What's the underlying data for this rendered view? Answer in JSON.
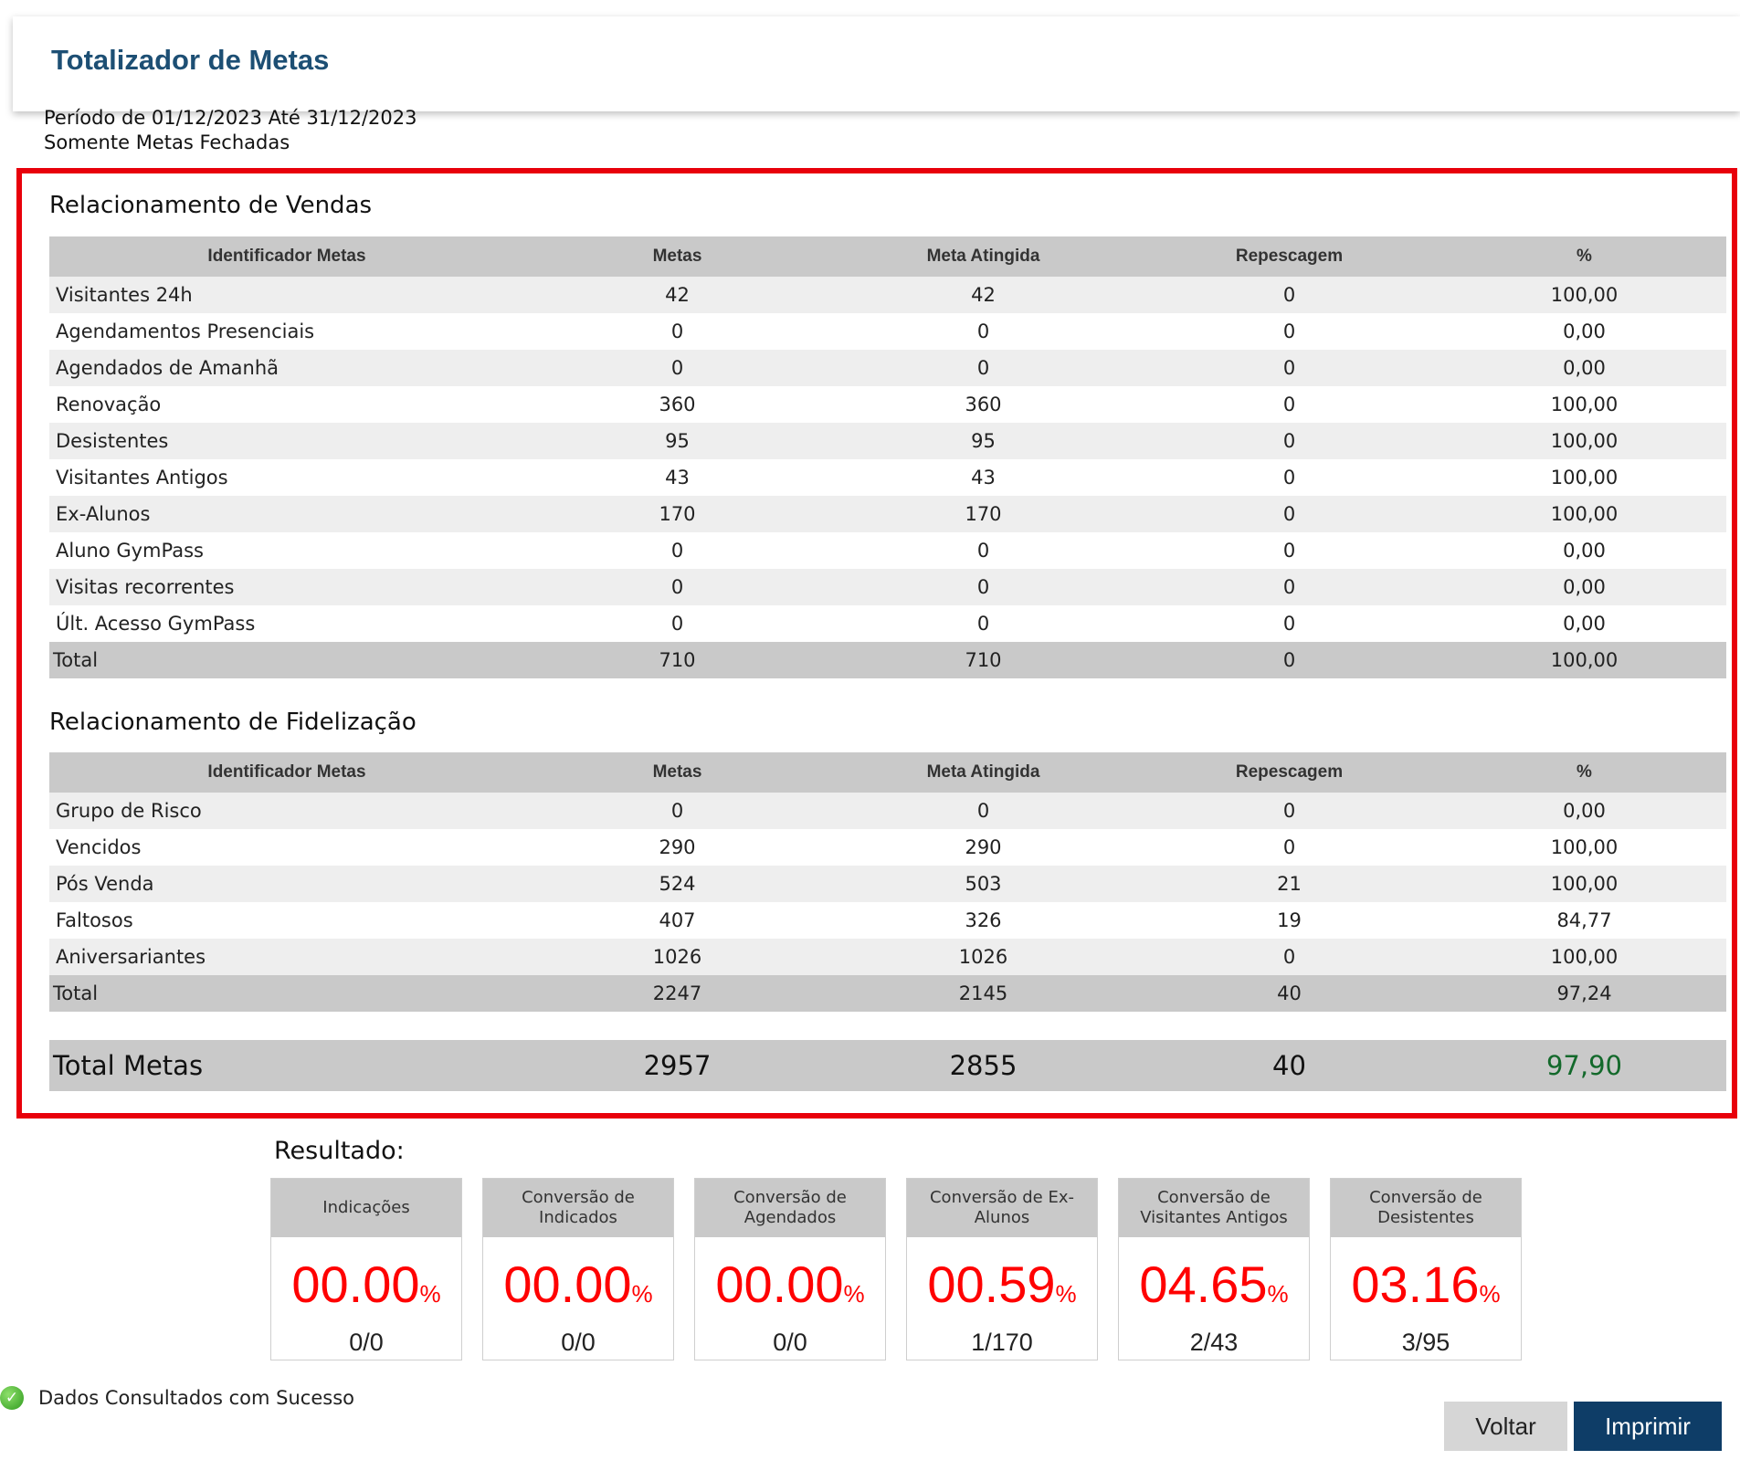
{
  "header": {
    "title": "Totalizador de Metas"
  },
  "filters": {
    "period": "Período de 01/12/2023 Até 31/12/2023",
    "closed_only": "Somente Metas Fechadas"
  },
  "columns": [
    "Identificador Metas",
    "Metas",
    "Meta Atingida",
    "Repescagem",
    "%"
  ],
  "vendas": {
    "title": "Relacionamento de Vendas",
    "rows": [
      {
        "name": "Visitantes 24h",
        "metas": "42",
        "atingida": "42",
        "repescagem": "0",
        "pct": "100,00"
      },
      {
        "name": "Agendamentos Presenciais",
        "metas": "0",
        "atingida": "0",
        "repescagem": "0",
        "pct": "0,00"
      },
      {
        "name": "Agendados de Amanhã",
        "metas": "0",
        "atingida": "0",
        "repescagem": "0",
        "pct": "0,00"
      },
      {
        "name": "Renovação",
        "metas": "360",
        "atingida": "360",
        "repescagem": "0",
        "pct": "100,00"
      },
      {
        "name": "Desistentes",
        "metas": "95",
        "atingida": "95",
        "repescagem": "0",
        "pct": "100,00"
      },
      {
        "name": "Visitantes Antigos",
        "metas": "43",
        "atingida": "43",
        "repescagem": "0",
        "pct": "100,00"
      },
      {
        "name": "Ex-Alunos",
        "metas": "170",
        "atingida": "170",
        "repescagem": "0",
        "pct": "100,00"
      },
      {
        "name": "Aluno GymPass",
        "metas": "0",
        "atingida": "0",
        "repescagem": "0",
        "pct": "0,00"
      },
      {
        "name": "Visitas recorrentes",
        "metas": "0",
        "atingida": "0",
        "repescagem": "0",
        "pct": "0,00"
      },
      {
        "name": "Últ. Acesso GymPass",
        "metas": "0",
        "atingida": "0",
        "repescagem": "0",
        "pct": "0,00"
      }
    ],
    "total": {
      "name": "Total",
      "metas": "710",
      "atingida": "710",
      "repescagem": "0",
      "pct": "100,00"
    }
  },
  "fidelizacao": {
    "title": "Relacionamento de Fidelização",
    "rows": [
      {
        "name": "Grupo de Risco",
        "metas": "0",
        "atingida": "0",
        "repescagem": "0",
        "pct": "0,00"
      },
      {
        "name": "Vencidos",
        "metas": "290",
        "atingida": "290",
        "repescagem": "0",
        "pct": "100,00"
      },
      {
        "name": "Pós Venda",
        "metas": "524",
        "atingida": "503",
        "repescagem": "21",
        "pct": "100,00"
      },
      {
        "name": "Faltosos",
        "metas": "407",
        "atingida": "326",
        "repescagem": "19",
        "pct": "84,77"
      },
      {
        "name": "Aniversariantes",
        "metas": "1026",
        "atingida": "1026",
        "repescagem": "0",
        "pct": "100,00"
      }
    ],
    "total": {
      "name": "Total",
      "metas": "2247",
      "atingida": "2145",
      "repescagem": "40",
      "pct": "97,24"
    }
  },
  "total_metas": {
    "label": "Total Metas",
    "metas": "2957",
    "atingida": "2855",
    "repescagem": "40",
    "pct": "97,90"
  },
  "resultado": {
    "label": "Resultado:",
    "cards": [
      {
        "title": "Indicações",
        "value": "00.00",
        "unit": "%",
        "fraction": "0/0"
      },
      {
        "title": "Conversão de Indicados",
        "value": "00.00",
        "unit": "%",
        "fraction": "0/0"
      },
      {
        "title": "Conversão de Agendados",
        "value": "00.00",
        "unit": "%",
        "fraction": "0/0"
      },
      {
        "title": "Conversão de Ex-Alunos",
        "value": "00.59",
        "unit": "%",
        "fraction": "1/170"
      },
      {
        "title": "Conversão de Visitantes Antigos",
        "value": "04.65",
        "unit": "%",
        "fraction": "2/43"
      },
      {
        "title": "Conversão de Desistentes",
        "value": "03.16",
        "unit": "%",
        "fraction": "3/95"
      }
    ]
  },
  "status": {
    "message": "Dados Consultados com Sucesso",
    "icon": "success-check-icon"
  },
  "buttons": {
    "voltar": "Voltar",
    "imprimir": "Imprimir"
  },
  "colors": {
    "positive": "#13692b",
    "negative": "#e8000b",
    "accent": "#0e3d67",
    "title": "#1d4f74"
  }
}
